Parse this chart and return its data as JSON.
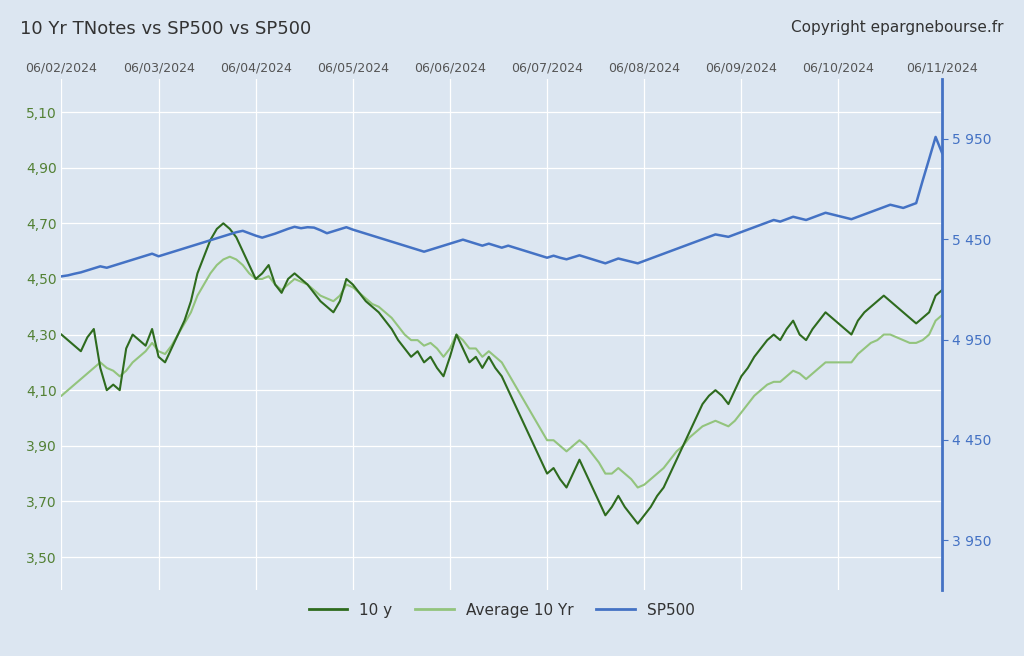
{
  "title_left": "10 Yr TNotes vs SP500 vs SP500",
  "title_right": "Copyright epargnebourse.fr",
  "background_color": "#dce6f1",
  "left_yticks": [
    3.5,
    3.7,
    3.9,
    4.1,
    4.3,
    4.5,
    4.7,
    4.9,
    5.1
  ],
  "right_yticks": [
    3950,
    4450,
    4950,
    5450,
    5950
  ],
  "left_ylim": [
    3.38,
    5.22
  ],
  "right_ylim": [
    3700,
    6250
  ],
  "x_labels": [
    "06/02/2024",
    "06/03/2024",
    "06/04/2024",
    "06/05/2024",
    "06/06/2024",
    "06/07/2024",
    "06/08/2024",
    "06/09/2024",
    "06/10/2024",
    "06/11/2024"
  ],
  "color_10y": "#2e6b1e",
  "color_avg": "#93c47d",
  "color_sp500": "#4472c4",
  "color_left_ticks": "#538135",
  "color_right_ticks": "#4472c4",
  "color_right_axis": "#4472c4",
  "legend_labels": [
    "10 y",
    "Average 10 Yr",
    "SP500"
  ],
  "ten_y": [
    4.3,
    4.28,
    4.26,
    4.24,
    4.29,
    4.32,
    4.18,
    4.1,
    4.12,
    4.1,
    4.25,
    4.3,
    4.28,
    4.26,
    4.32,
    4.22,
    4.2,
    4.25,
    4.3,
    4.35,
    4.42,
    4.52,
    4.58,
    4.64,
    4.68,
    4.7,
    4.68,
    4.65,
    4.6,
    4.55,
    4.5,
    4.52,
    4.55,
    4.48,
    4.45,
    4.5,
    4.52,
    4.5,
    4.48,
    4.45,
    4.42,
    4.4,
    4.38,
    4.42,
    4.5,
    4.48,
    4.45,
    4.42,
    4.4,
    4.38,
    4.35,
    4.32,
    4.28,
    4.25,
    4.22,
    4.24,
    4.2,
    4.22,
    4.18,
    4.15,
    4.22,
    4.3,
    4.25,
    4.2,
    4.22,
    4.18,
    4.22,
    4.18,
    4.15,
    4.1,
    4.05,
    4.0,
    3.95,
    3.9,
    3.85,
    3.8,
    3.82,
    3.78,
    3.75,
    3.8,
    3.85,
    3.8,
    3.75,
    3.7,
    3.65,
    3.68,
    3.72,
    3.68,
    3.65,
    3.62,
    3.65,
    3.68,
    3.72,
    3.75,
    3.8,
    3.85,
    3.9,
    3.95,
    4.0,
    4.05,
    4.08,
    4.1,
    4.08,
    4.05,
    4.1,
    4.15,
    4.18,
    4.22,
    4.25,
    4.28,
    4.3,
    4.28,
    4.32,
    4.35,
    4.3,
    4.28,
    4.32,
    4.35,
    4.38,
    4.36,
    4.34,
    4.32,
    4.3,
    4.35,
    4.38,
    4.4,
    4.42,
    4.44,
    4.42,
    4.4,
    4.38,
    4.36,
    4.34,
    4.36,
    4.38,
    4.44,
    4.46
  ],
  "avg_10y": [
    4.08,
    4.1,
    4.12,
    4.14,
    4.16,
    4.18,
    4.2,
    4.18,
    4.17,
    4.15,
    4.17,
    4.2,
    4.22,
    4.24,
    4.27,
    4.24,
    4.23,
    4.26,
    4.3,
    4.34,
    4.38,
    4.44,
    4.48,
    4.52,
    4.55,
    4.57,
    4.58,
    4.57,
    4.55,
    4.52,
    4.5,
    4.5,
    4.51,
    4.48,
    4.46,
    4.48,
    4.5,
    4.49,
    4.48,
    4.46,
    4.44,
    4.43,
    4.42,
    4.44,
    4.48,
    4.47,
    4.45,
    4.43,
    4.41,
    4.4,
    4.38,
    4.36,
    4.33,
    4.3,
    4.28,
    4.28,
    4.26,
    4.27,
    4.25,
    4.22,
    4.25,
    4.3,
    4.28,
    4.25,
    4.25,
    4.22,
    4.24,
    4.22,
    4.2,
    4.16,
    4.12,
    4.08,
    4.04,
    4.0,
    3.96,
    3.92,
    3.92,
    3.9,
    3.88,
    3.9,
    3.92,
    3.9,
    3.87,
    3.84,
    3.8,
    3.8,
    3.82,
    3.8,
    3.78,
    3.75,
    3.76,
    3.78,
    3.8,
    3.82,
    3.85,
    3.88,
    3.9,
    3.93,
    3.95,
    3.97,
    3.98,
    3.99,
    3.98,
    3.97,
    3.99,
    4.02,
    4.05,
    4.08,
    4.1,
    4.12,
    4.13,
    4.13,
    4.15,
    4.17,
    4.16,
    4.14,
    4.16,
    4.18,
    4.2,
    4.2,
    4.2,
    4.2,
    4.2,
    4.23,
    4.25,
    4.27,
    4.28,
    4.3,
    4.3,
    4.29,
    4.28,
    4.27,
    4.27,
    4.28,
    4.3,
    4.35,
    4.37
  ],
  "sp500": [
    5265,
    5270,
    5278,
    5285,
    5295,
    5305,
    5315,
    5308,
    5318,
    5328,
    5338,
    5348,
    5358,
    5368,
    5378,
    5365,
    5375,
    5385,
    5395,
    5405,
    5415,
    5425,
    5435,
    5445,
    5455,
    5465,
    5475,
    5485,
    5492,
    5480,
    5468,
    5458,
    5468,
    5478,
    5490,
    5502,
    5512,
    5505,
    5510,
    5508,
    5495,
    5480,
    5490,
    5500,
    5510,
    5498,
    5488,
    5478,
    5468,
    5458,
    5448,
    5438,
    5428,
    5418,
    5408,
    5398,
    5388,
    5398,
    5408,
    5418,
    5428,
    5438,
    5448,
    5438,
    5428,
    5418,
    5428,
    5418,
    5408,
    5418,
    5408,
    5398,
    5388,
    5378,
    5368,
    5358,
    5368,
    5358,
    5350,
    5360,
    5370,
    5360,
    5350,
    5340,
    5330,
    5342,
    5354,
    5346,
    5338,
    5330,
    5342,
    5354,
    5366,
    5378,
    5390,
    5402,
    5414,
    5426,
    5438,
    5450,
    5462,
    5474,
    5468,
    5462,
    5474,
    5486,
    5498,
    5510,
    5522,
    5534,
    5546,
    5538,
    5550,
    5562,
    5554,
    5546,
    5558,
    5570,
    5582,
    5574,
    5566,
    5558,
    5550,
    5562,
    5574,
    5586,
    5598,
    5610,
    5622,
    5614,
    5606,
    5618,
    5630,
    5742,
    5850,
    5960,
    5880
  ]
}
